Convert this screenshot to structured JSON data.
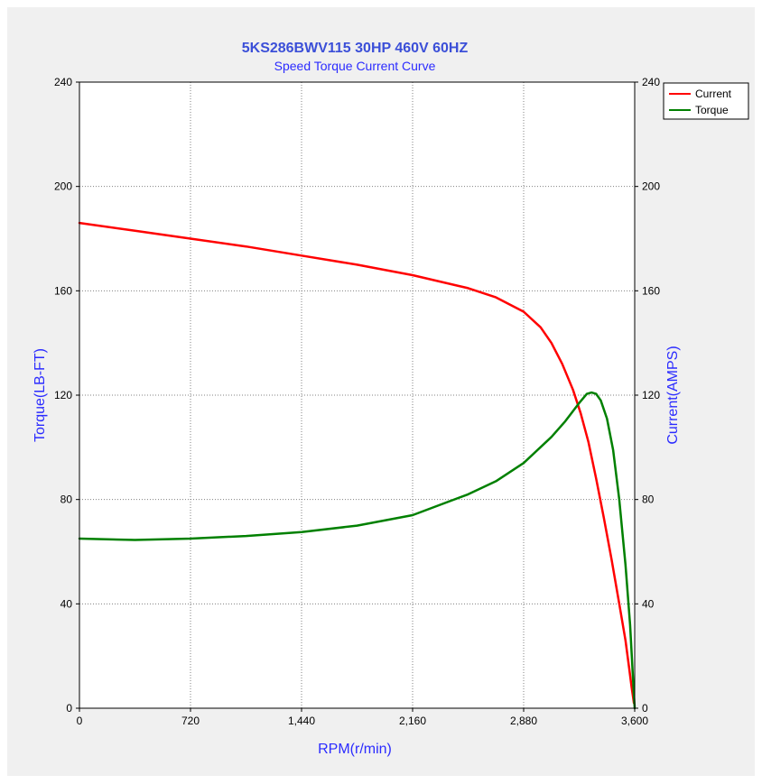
{
  "chart_data": {
    "type": "line",
    "title": "5KS286BWV115  30HP  460V  60HZ",
    "subtitle": "Speed Torque Current Curve",
    "xlabel": "RPM(r/min)",
    "ylabel_left": "Torque(LB-FT)",
    "ylabel_right": "Current(AMPS)",
    "xlim": [
      0,
      3600
    ],
    "ylim_left": [
      0,
      240
    ],
    "ylim_right": [
      0,
      240
    ],
    "x_ticks": [
      0,
      720,
      1440,
      2160,
      2880,
      3600
    ],
    "x_tick_labels": [
      "0",
      "720",
      "1,440",
      "2,160",
      "2,880",
      "3,600"
    ],
    "y_ticks": [
      0,
      40,
      80,
      120,
      160,
      200,
      240
    ],
    "y_tick_labels": [
      "0",
      "40",
      "80",
      "120",
      "160",
      "200",
      "240"
    ],
    "grid": true,
    "legend_position": "top-right",
    "series": [
      {
        "name": "Current",
        "axis": "right",
        "color": "#ff0000",
        "points": [
          [
            0,
            186
          ],
          [
            360,
            183
          ],
          [
            720,
            180
          ],
          [
            1080,
            177
          ],
          [
            1440,
            173.5
          ],
          [
            1800,
            170
          ],
          [
            2160,
            166
          ],
          [
            2520,
            161
          ],
          [
            2700,
            157.5
          ],
          [
            2880,
            152
          ],
          [
            2990,
            146
          ],
          [
            3060,
            140
          ],
          [
            3130,
            132
          ],
          [
            3200,
            122
          ],
          [
            3250,
            113
          ],
          [
            3300,
            102
          ],
          [
            3350,
            88
          ],
          [
            3400,
            73
          ],
          [
            3450,
            57
          ],
          [
            3500,
            40
          ],
          [
            3540,
            26
          ],
          [
            3565,
            15
          ],
          [
            3580,
            8
          ],
          [
            3590,
            4
          ],
          [
            3595,
            2
          ]
        ]
      },
      {
        "name": "Torque",
        "axis": "left",
        "color": "#008000",
        "points": [
          [
            0,
            65
          ],
          [
            360,
            64.5
          ],
          [
            720,
            65
          ],
          [
            1080,
            66
          ],
          [
            1440,
            67.5
          ],
          [
            1800,
            70
          ],
          [
            2160,
            74
          ],
          [
            2520,
            82
          ],
          [
            2700,
            87
          ],
          [
            2880,
            94
          ],
          [
            3060,
            104
          ],
          [
            3150,
            110
          ],
          [
            3240,
            117
          ],
          [
            3290,
            120.5
          ],
          [
            3320,
            121
          ],
          [
            3350,
            120.5
          ],
          [
            3380,
            118
          ],
          [
            3420,
            111
          ],
          [
            3460,
            99
          ],
          [
            3500,
            80
          ],
          [
            3540,
            55
          ],
          [
            3570,
            32
          ],
          [
            3585,
            16
          ],
          [
            3595,
            5
          ],
          [
            3600,
            0
          ]
        ]
      }
    ]
  }
}
